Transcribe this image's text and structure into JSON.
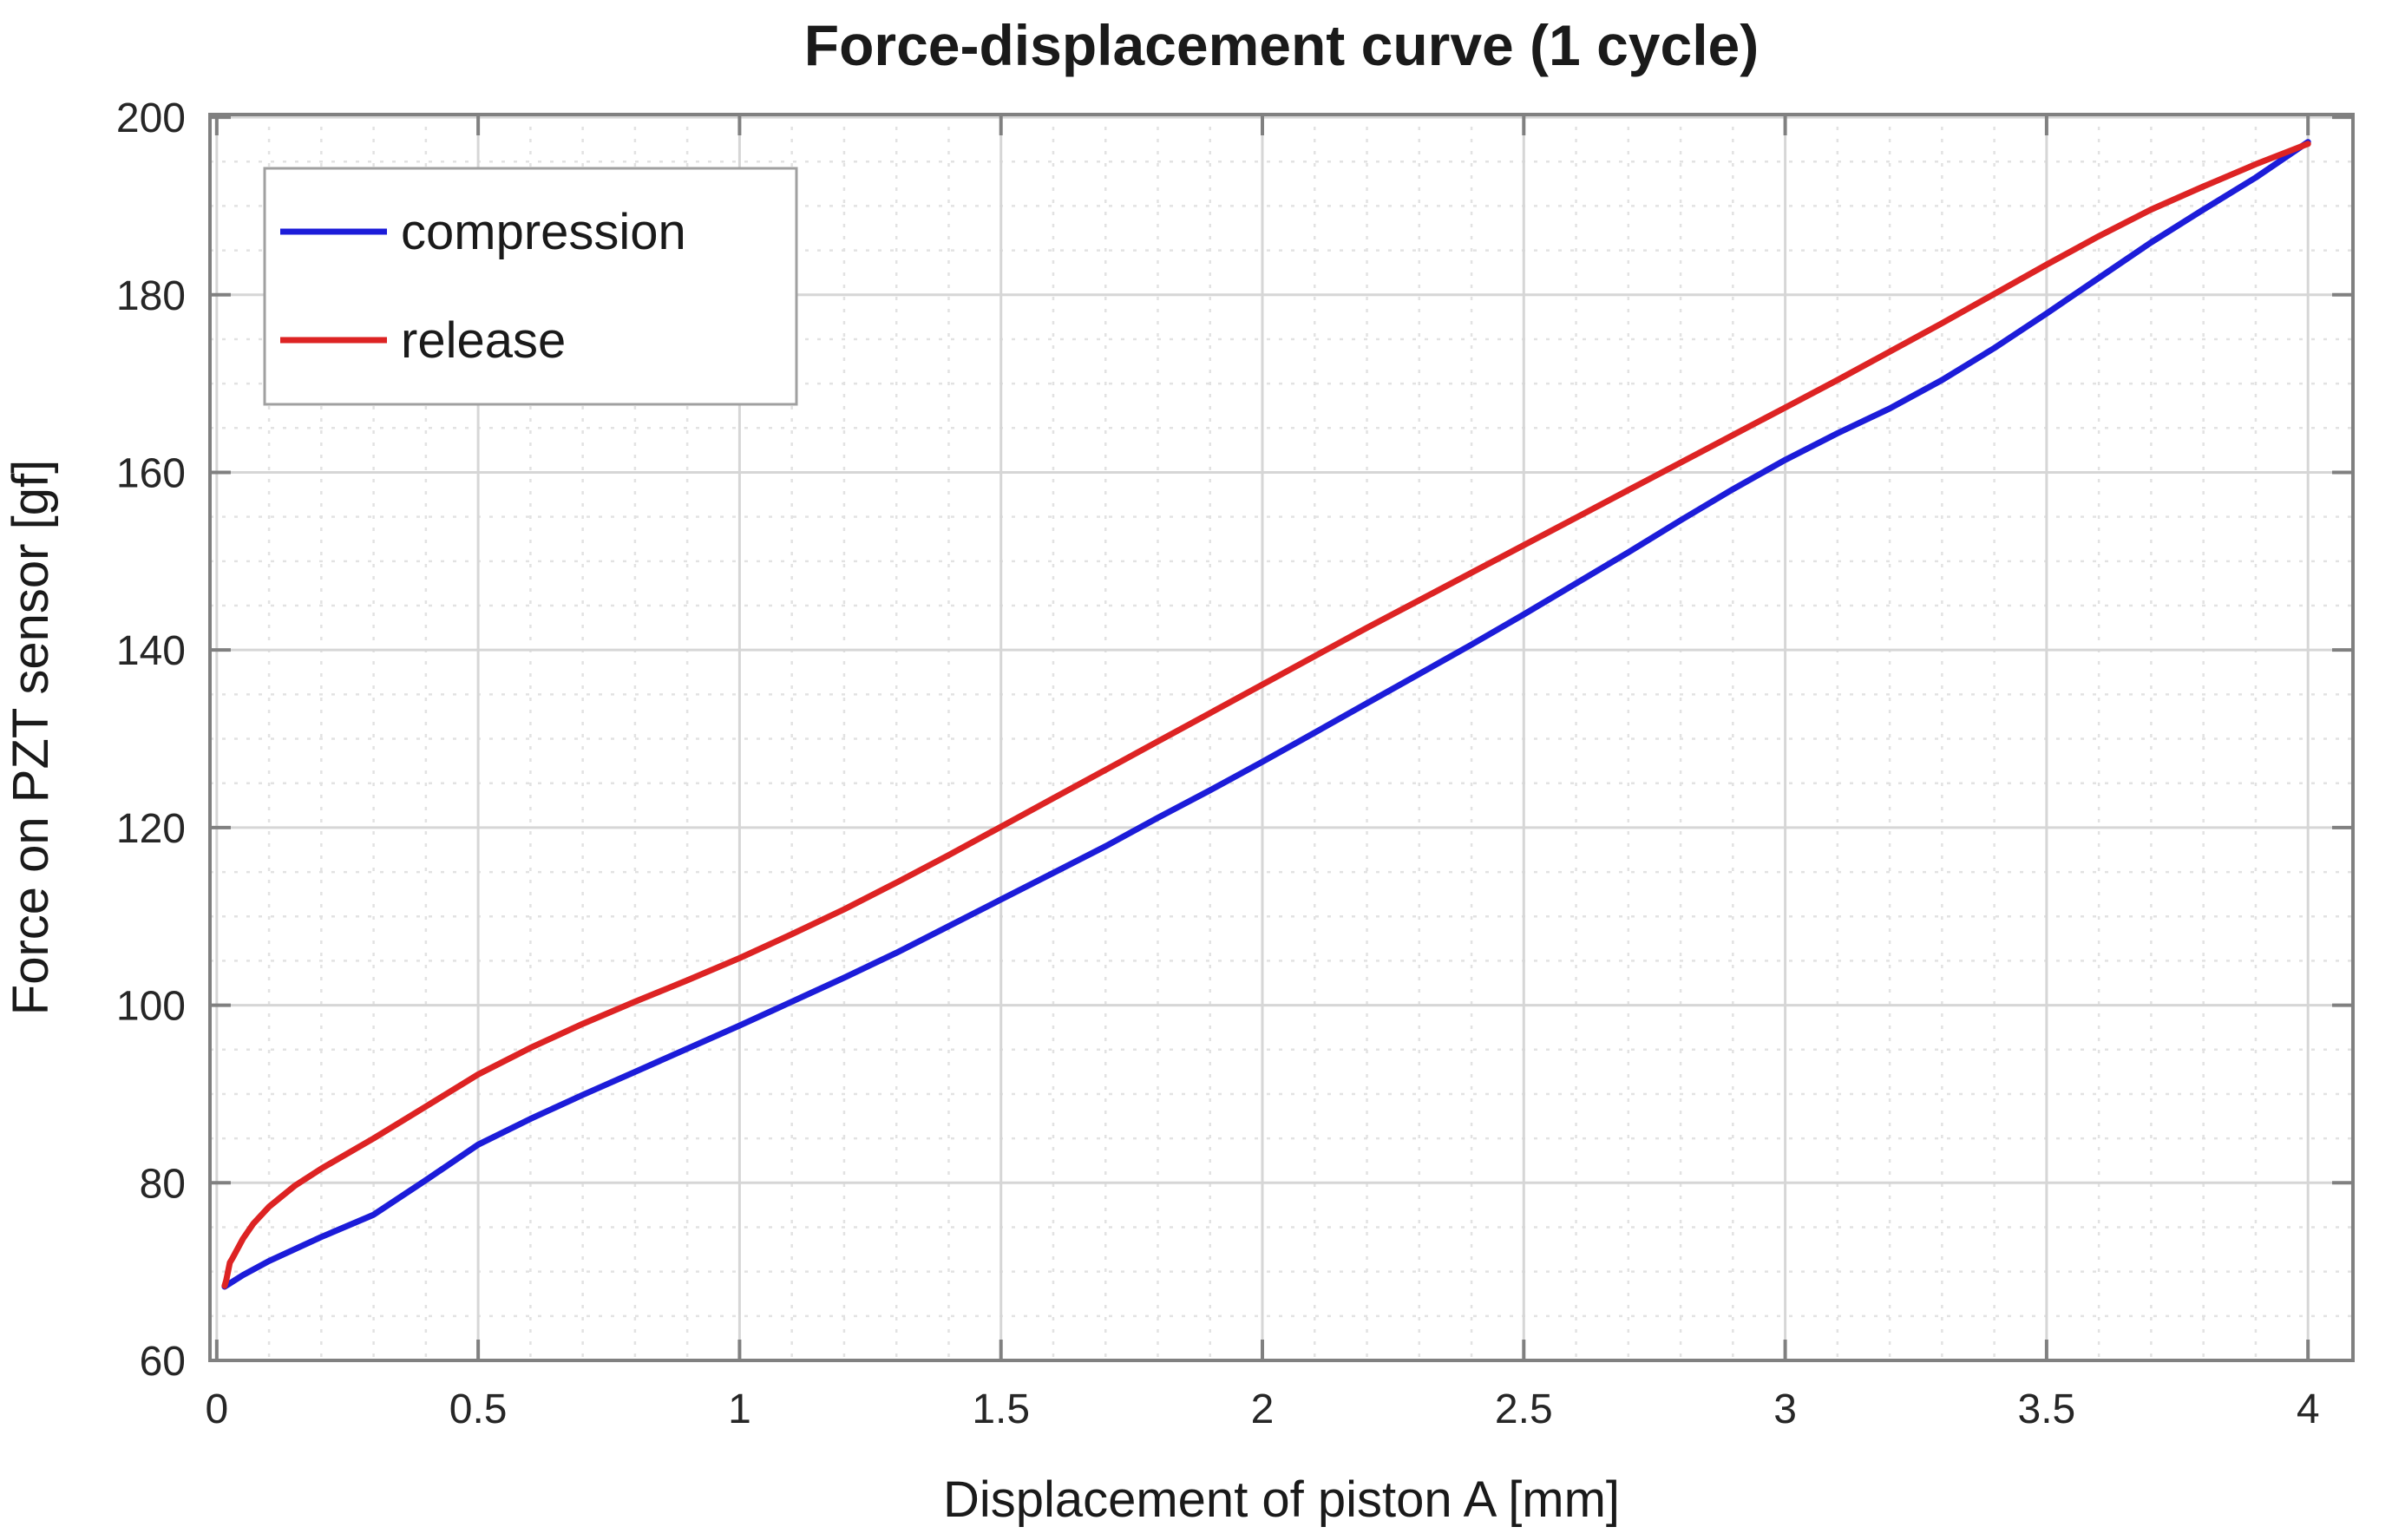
{
  "figure": {
    "title": "Force-displacement curve (1 cycle)",
    "xlabel": "Displacement of piston A [mm]",
    "ylabel": "Force on PZT sensor [gf]"
  },
  "colors": {
    "compression": "#1c1cd9",
    "release": "#dd2323",
    "axis": "#808080",
    "grid_major": "#d6d6d6",
    "grid_minor": "#e2e2e2",
    "text": "#262626",
    "legend_border": "#a0a0a0",
    "background": "#ffffff"
  },
  "chart_data": {
    "type": "line",
    "title": "Force-displacement curve (1 cycle)",
    "xlabel": "Displacement of piston A [mm]",
    "ylabel": "Force on PZT sensor [gf]",
    "xlim": [
      -0.013,
      4.086
    ],
    "ylim": [
      60,
      200.3
    ],
    "xticks": [
      0,
      0.5,
      1,
      1.5,
      2,
      2.5,
      3,
      3.5,
      4
    ],
    "xtick_labels": [
      "0",
      "0.5",
      "1",
      "1.5",
      "2",
      "2.5",
      "3",
      "3.5",
      "4"
    ],
    "yticks": [
      60,
      80,
      100,
      120,
      140,
      160,
      180,
      200
    ],
    "ytick_labels": [
      "60",
      "80",
      "100",
      "120",
      "140",
      "160",
      "180",
      "200"
    ],
    "x_minor_step": 0.1,
    "y_minor_step": 5,
    "grid": true,
    "minor_grid": true,
    "legend_position": "top-left",
    "series": [
      {
        "name": "compression",
        "color": "#1c1cd9",
        "x": [
          0.015,
          0.05,
          0.1,
          0.2,
          0.3,
          0.4,
          0.5,
          0.6,
          0.7,
          0.8,
          0.9,
          1.0,
          1.1,
          1.2,
          1.3,
          1.4,
          1.5,
          1.6,
          1.7,
          1.8,
          1.9,
          2.0,
          2.1,
          2.2,
          2.3,
          2.4,
          2.5,
          2.6,
          2.7,
          2.8,
          2.9,
          3.0,
          3.1,
          3.2,
          3.3,
          3.4,
          3.5,
          3.6,
          3.7,
          3.8,
          3.9,
          4.0
        ],
        "y": [
          68.3,
          69.6,
          71.2,
          73.9,
          76.4,
          80.3,
          84.3,
          87.2,
          89.9,
          92.5,
          95.1,
          97.7,
          100.4,
          103.1,
          105.9,
          108.9,
          111.9,
          114.9,
          117.9,
          121.1,
          124.2,
          127.4,
          130.7,
          134.0,
          137.3,
          140.6,
          144.0,
          147.5,
          151.0,
          154.6,
          158.1,
          161.4,
          164.4,
          167.2,
          170.4,
          174.0,
          177.9,
          181.9,
          185.9,
          189.6,
          193.2,
          197.2
        ]
      },
      {
        "name": "release",
        "color": "#dd2323",
        "x": [
          4.0,
          3.9,
          3.8,
          3.7,
          3.6,
          3.5,
          3.4,
          3.3,
          3.2,
          3.1,
          3.0,
          2.9,
          2.8,
          2.7,
          2.6,
          2.5,
          2.4,
          2.3,
          2.2,
          2.1,
          2.0,
          1.9,
          1.8,
          1.7,
          1.6,
          1.5,
          1.4,
          1.3,
          1.2,
          1.1,
          1.0,
          0.9,
          0.8,
          0.7,
          0.6,
          0.5,
          0.4,
          0.3,
          0.2,
          0.15,
          0.1,
          0.07,
          0.05,
          0.03,
          0.025,
          0.018,
          0.015
        ],
        "y": [
          197.0,
          194.7,
          192.2,
          189.6,
          186.6,
          183.4,
          180.1,
          176.8,
          173.6,
          170.4,
          167.3,
          164.2,
          161.1,
          158.0,
          154.9,
          151.8,
          148.7,
          145.6,
          142.5,
          139.3,
          136.1,
          132.9,
          129.7,
          126.5,
          123.3,
          120.1,
          116.9,
          113.8,
          110.8,
          108.0,
          105.3,
          102.8,
          100.4,
          97.9,
          95.2,
          92.2,
          88.6,
          85.0,
          81.6,
          79.7,
          77.3,
          75.4,
          73.7,
          71.5,
          71.0,
          69.0,
          68.4
        ]
      }
    ],
    "legend": {
      "entries": [
        "compression",
        "release"
      ]
    }
  }
}
